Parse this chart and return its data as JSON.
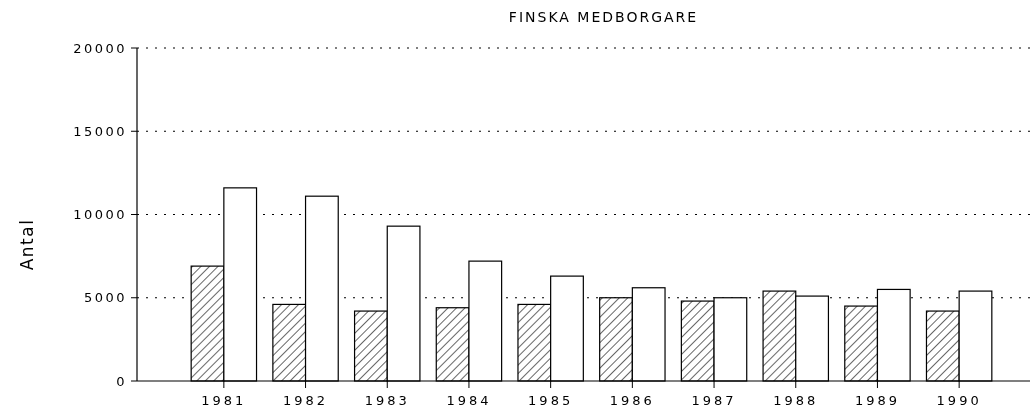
{
  "chart_data": {
    "type": "bar",
    "title": "FINSKA MEDBORGARE",
    "ylabel": "Antal",
    "categories": [
      "1981",
      "1982",
      "1983",
      "1984",
      "1985",
      "1986",
      "1987",
      "1988",
      "1989",
      "1990"
    ],
    "series": [
      {
        "color": "#000000",
        "values": [
          6900,
          4600,
          4200,
          4400,
          4600,
          5000,
          4800,
          5400,
          4500,
          4200
        ]
      },
      {
        "color": "#ffffff",
        "values": [
          11600,
          11100,
          9300,
          7200,
          6300,
          5600,
          5000,
          5100,
          5500,
          5400
        ]
      }
    ],
    "ylim": [
      0,
      20000
    ],
    "yticks": [
      0,
      5000,
      10000,
      15000,
      20000
    ],
    "grid": "y"
  }
}
